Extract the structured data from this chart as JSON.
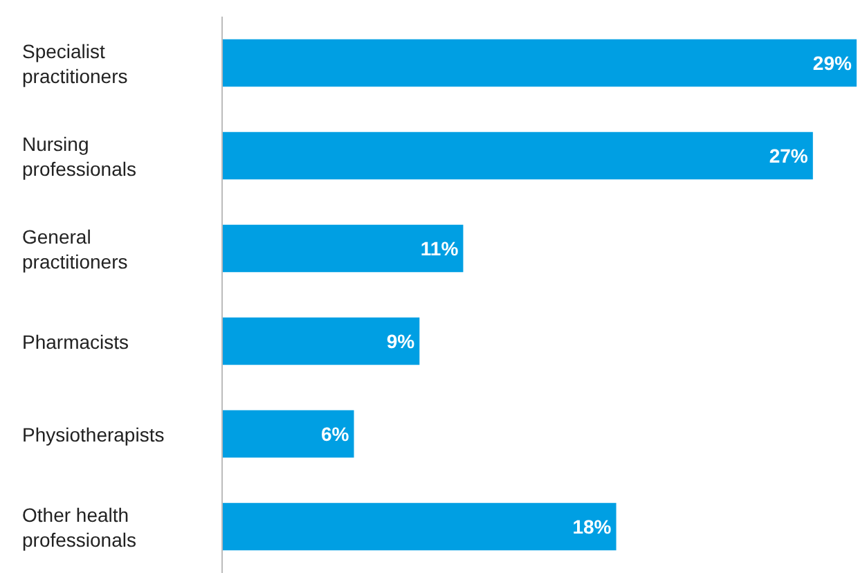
{
  "chart_data": {
    "type": "bar",
    "orientation": "horizontal",
    "categories": [
      "Specialist practitioners",
      "Nursing professionals",
      "General practitioners",
      "Pharmacists",
      "Physiotherapists",
      "Other health professionals"
    ],
    "values": [
      29,
      27,
      11,
      9,
      6,
      18
    ],
    "value_labels": [
      "29%",
      "27%",
      "11%",
      "9%",
      "6%",
      "18%"
    ],
    "color": "#009fe3",
    "xlim": [
      0,
      29
    ],
    "tick_labels": "y"
  }
}
